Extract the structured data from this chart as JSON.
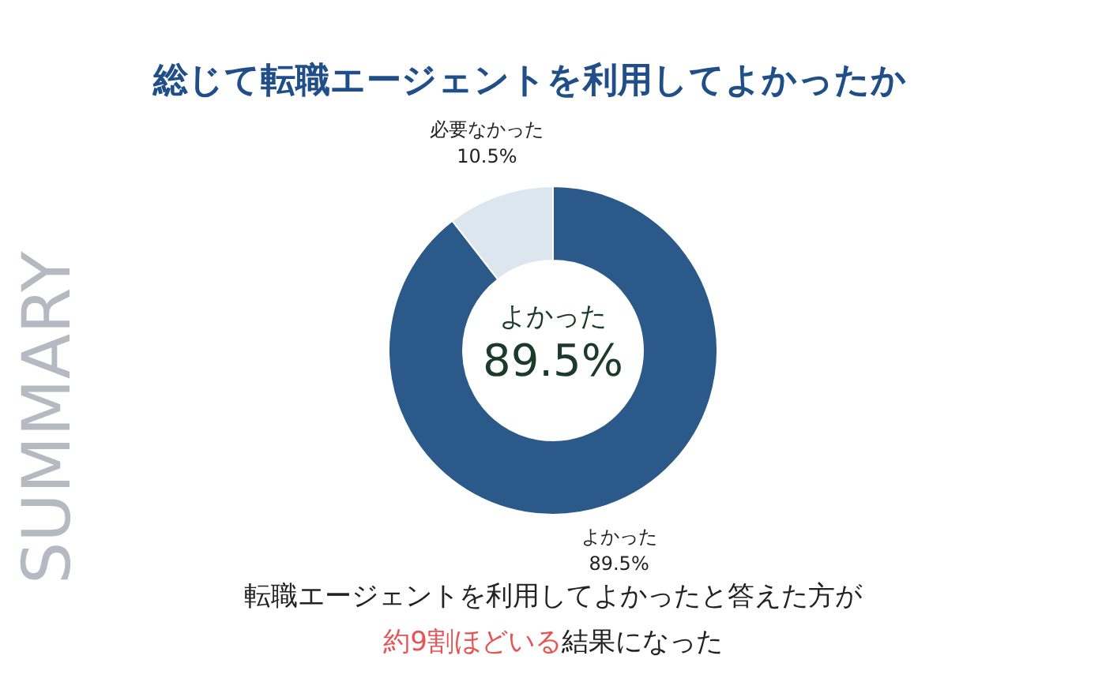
{
  "chart_data": {
    "type": "donut",
    "title": "総じて転職エージェントを利用してよかったか",
    "categories": [
      "よかった",
      "必要なかった"
    ],
    "values": [
      89.5,
      10.5
    ],
    "colors": [
      "#2b5a8a",
      "#dce6ee"
    ],
    "value_labels": [
      "89.5%",
      "10.5%"
    ],
    "annotations": [
      "よかった\n89.5%",
      "SUMMARY",
      "転職エージェントを利用してよかったと答えた方が",
      "約9割ほどいる結果になった"
    ]
  }
}
